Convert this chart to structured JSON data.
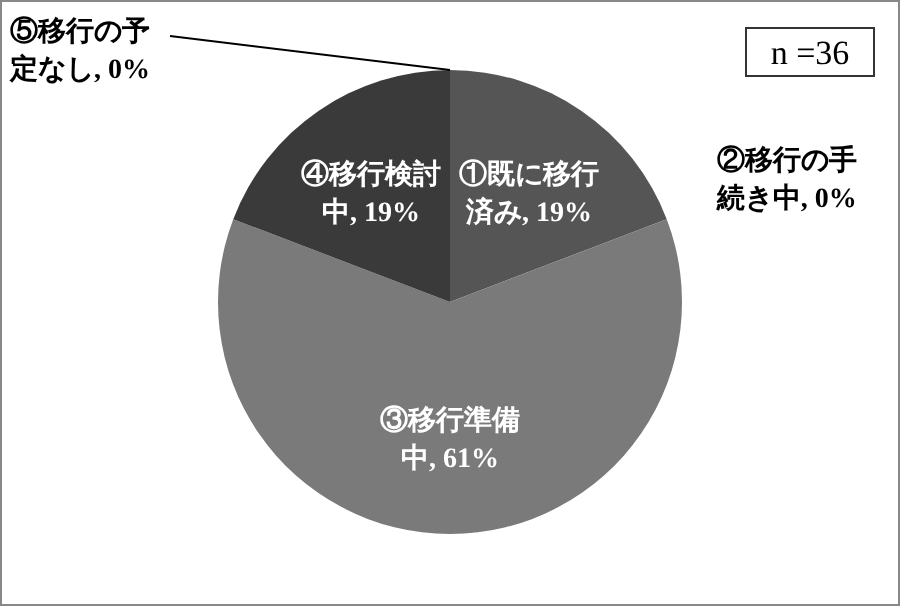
{
  "chart_data": {
    "type": "pie",
    "categories": [
      "①既に移行済み",
      "②移行の手続き中",
      "③移行準備中",
      "④移行検討中",
      "⑤移行の予定なし"
    ],
    "values": [
      19,
      0,
      61,
      19,
      0
    ],
    "colors": [
      "#555555",
      null,
      "#7a7a7a",
      "#3a3a3a",
      null
    ],
    "value_labels": [
      ", 19%",
      ", 0%",
      ", 61%",
      ", 19%",
      ", 0%"
    ],
    "annotations": [
      "n =36"
    ]
  }
}
